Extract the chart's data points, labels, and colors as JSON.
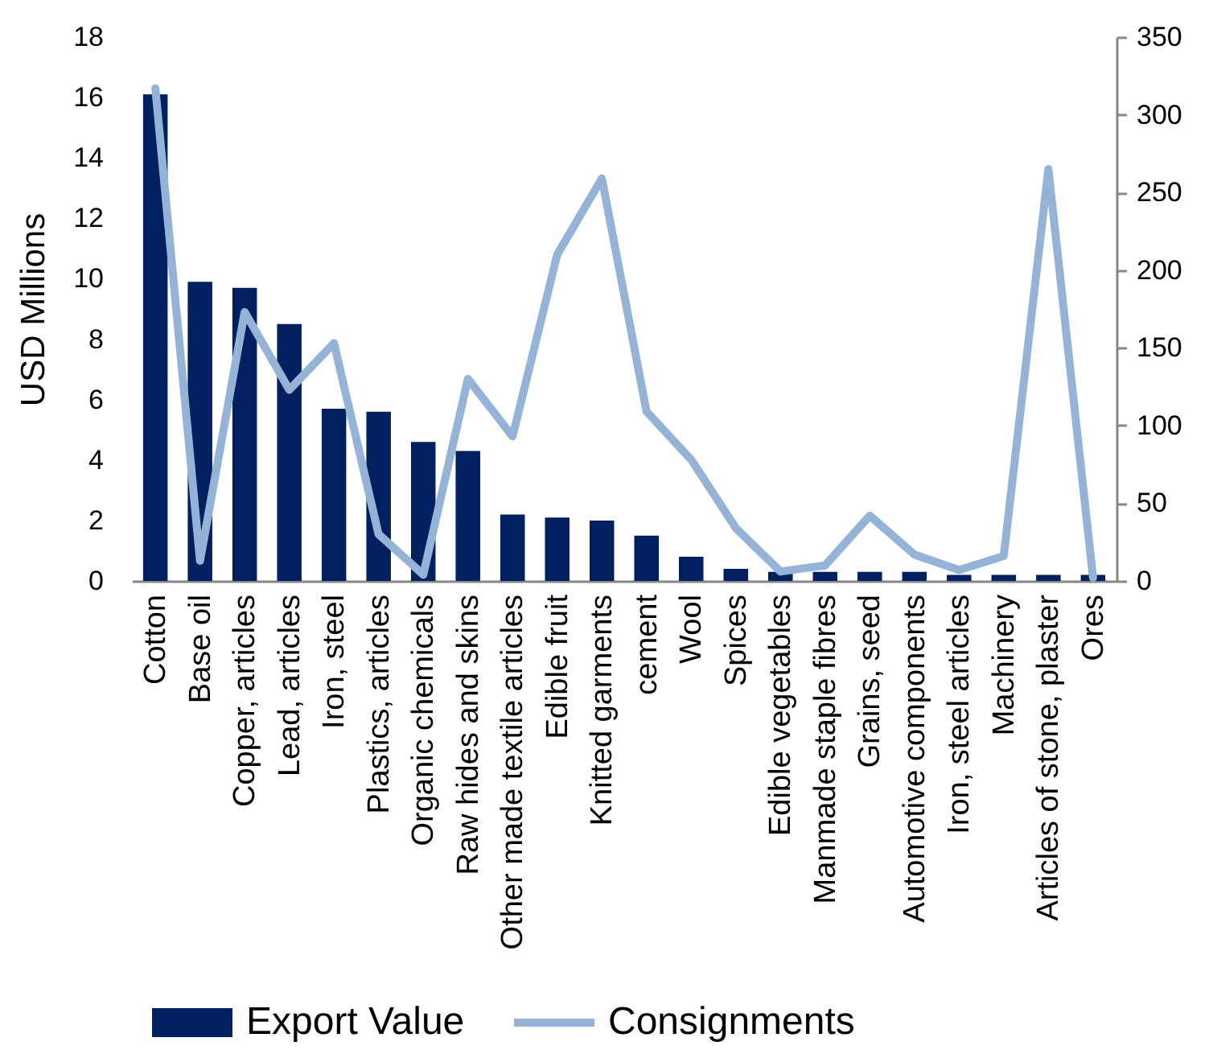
{
  "chart_data": {
    "type": "bar",
    "ylabel": "USD Millions",
    "categories": [
      "Cotton",
      "Base oil",
      "Copper, articles",
      "Lead, articles",
      "Iron, steel",
      "Plastics, articles",
      "Organic chemicals",
      "Raw hides and skins",
      "Other made textile articles",
      "Edible fruit",
      "Knitted garments",
      "cement",
      "Wool",
      "Spices",
      "Edible vegetables",
      "Manmade staple fibres",
      "Grains, seed",
      "Automotive components",
      "Iron, steel articles",
      "Machinery",
      "Articles of stone, plaster",
      "Ores"
    ],
    "series": [
      {
        "name": "Export Value",
        "color": "#002060",
        "values": [
          16.1,
          9.9,
          9.7,
          8.5,
          5.7,
          5.6,
          4.6,
          4.3,
          2.2,
          2.1,
          2.0,
          1.5,
          0.8,
          0.4,
          0.3,
          0.3,
          0.3,
          0.3,
          0.2,
          0.2,
          0.2,
          0.2
        ]
      },
      {
        "name": "Consignments",
        "type": "line",
        "axis": "y2",
        "color": "#95b3d7",
        "values": [
          317,
          13,
          173,
          123,
          153,
          30,
          4,
          130,
          93,
          210,
          259,
          109,
          78,
          34,
          6,
          10,
          42,
          17,
          7,
          16,
          265,
          2
        ]
      }
    ],
    "ylim": [
      0,
      18
    ],
    "yticks": [
      0,
      2,
      4,
      6,
      8,
      10,
      12,
      14,
      16,
      18
    ],
    "y2lim": [
      0,
      350
    ],
    "y2ticks": [
      0,
      50,
      100,
      150,
      200,
      250,
      300,
      350
    ],
    "legend": "bottom",
    "grid": false
  }
}
